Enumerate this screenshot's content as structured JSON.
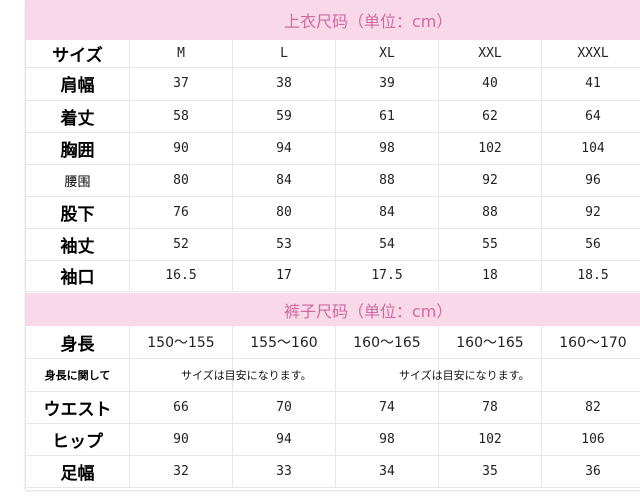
{
  "tops": {
    "title": "上衣尺码（单位：cm）",
    "header": {
      "label": "サイズ",
      "sizes": [
        "M",
        "L",
        "XL",
        "XXL",
        "XXXL"
      ]
    },
    "rows": [
      {
        "label": "肩幅",
        "values": [
          "37",
          "38",
          "39",
          "40",
          "41"
        ]
      },
      {
        "label": "着丈",
        "values": [
          "58",
          "59",
          "61",
          "62",
          "64"
        ]
      },
      {
        "label": "胸囲",
        "values": [
          "90",
          "94",
          "98",
          "102",
          "104"
        ]
      },
      {
        "label": "腰围",
        "values": [
          "80",
          "84",
          "88",
          "92",
          "96"
        ]
      },
      {
        "label": "股下",
        "values": [
          "76",
          "80",
          "84",
          "88",
          "92"
        ]
      },
      {
        "label": "袖丈",
        "values": [
          "52",
          "53",
          "54",
          "55",
          "56"
        ]
      },
      {
        "label": "袖口",
        "values": [
          "16.5",
          "17",
          "17.5",
          "18",
          "18.5"
        ]
      }
    ]
  },
  "pants": {
    "title": "裤子尺码（单位：cm）",
    "height_row": {
      "label": "身長",
      "values": [
        "150～155",
        "155～160",
        "160～165",
        "160～165",
        "160～170"
      ]
    },
    "note_row": {
      "label": "身長に関して",
      "notes": [
        "サイズは目安になります。",
        "サイズは目安になります。"
      ]
    },
    "rows": [
      {
        "label": "ウエスト",
        "values": [
          "66",
          "70",
          "74",
          "78",
          "82"
        ]
      },
      {
        "label": "ヒップ",
        "values": [
          "90",
          "94",
          "98",
          "102",
          "106"
        ]
      },
      {
        "label": "足幅",
        "values": [
          "32",
          "33",
          "34",
          "35",
          "36"
        ]
      }
    ]
  },
  "colors": {
    "band": "#f9d8e9",
    "band_text": "#d06aa0"
  }
}
